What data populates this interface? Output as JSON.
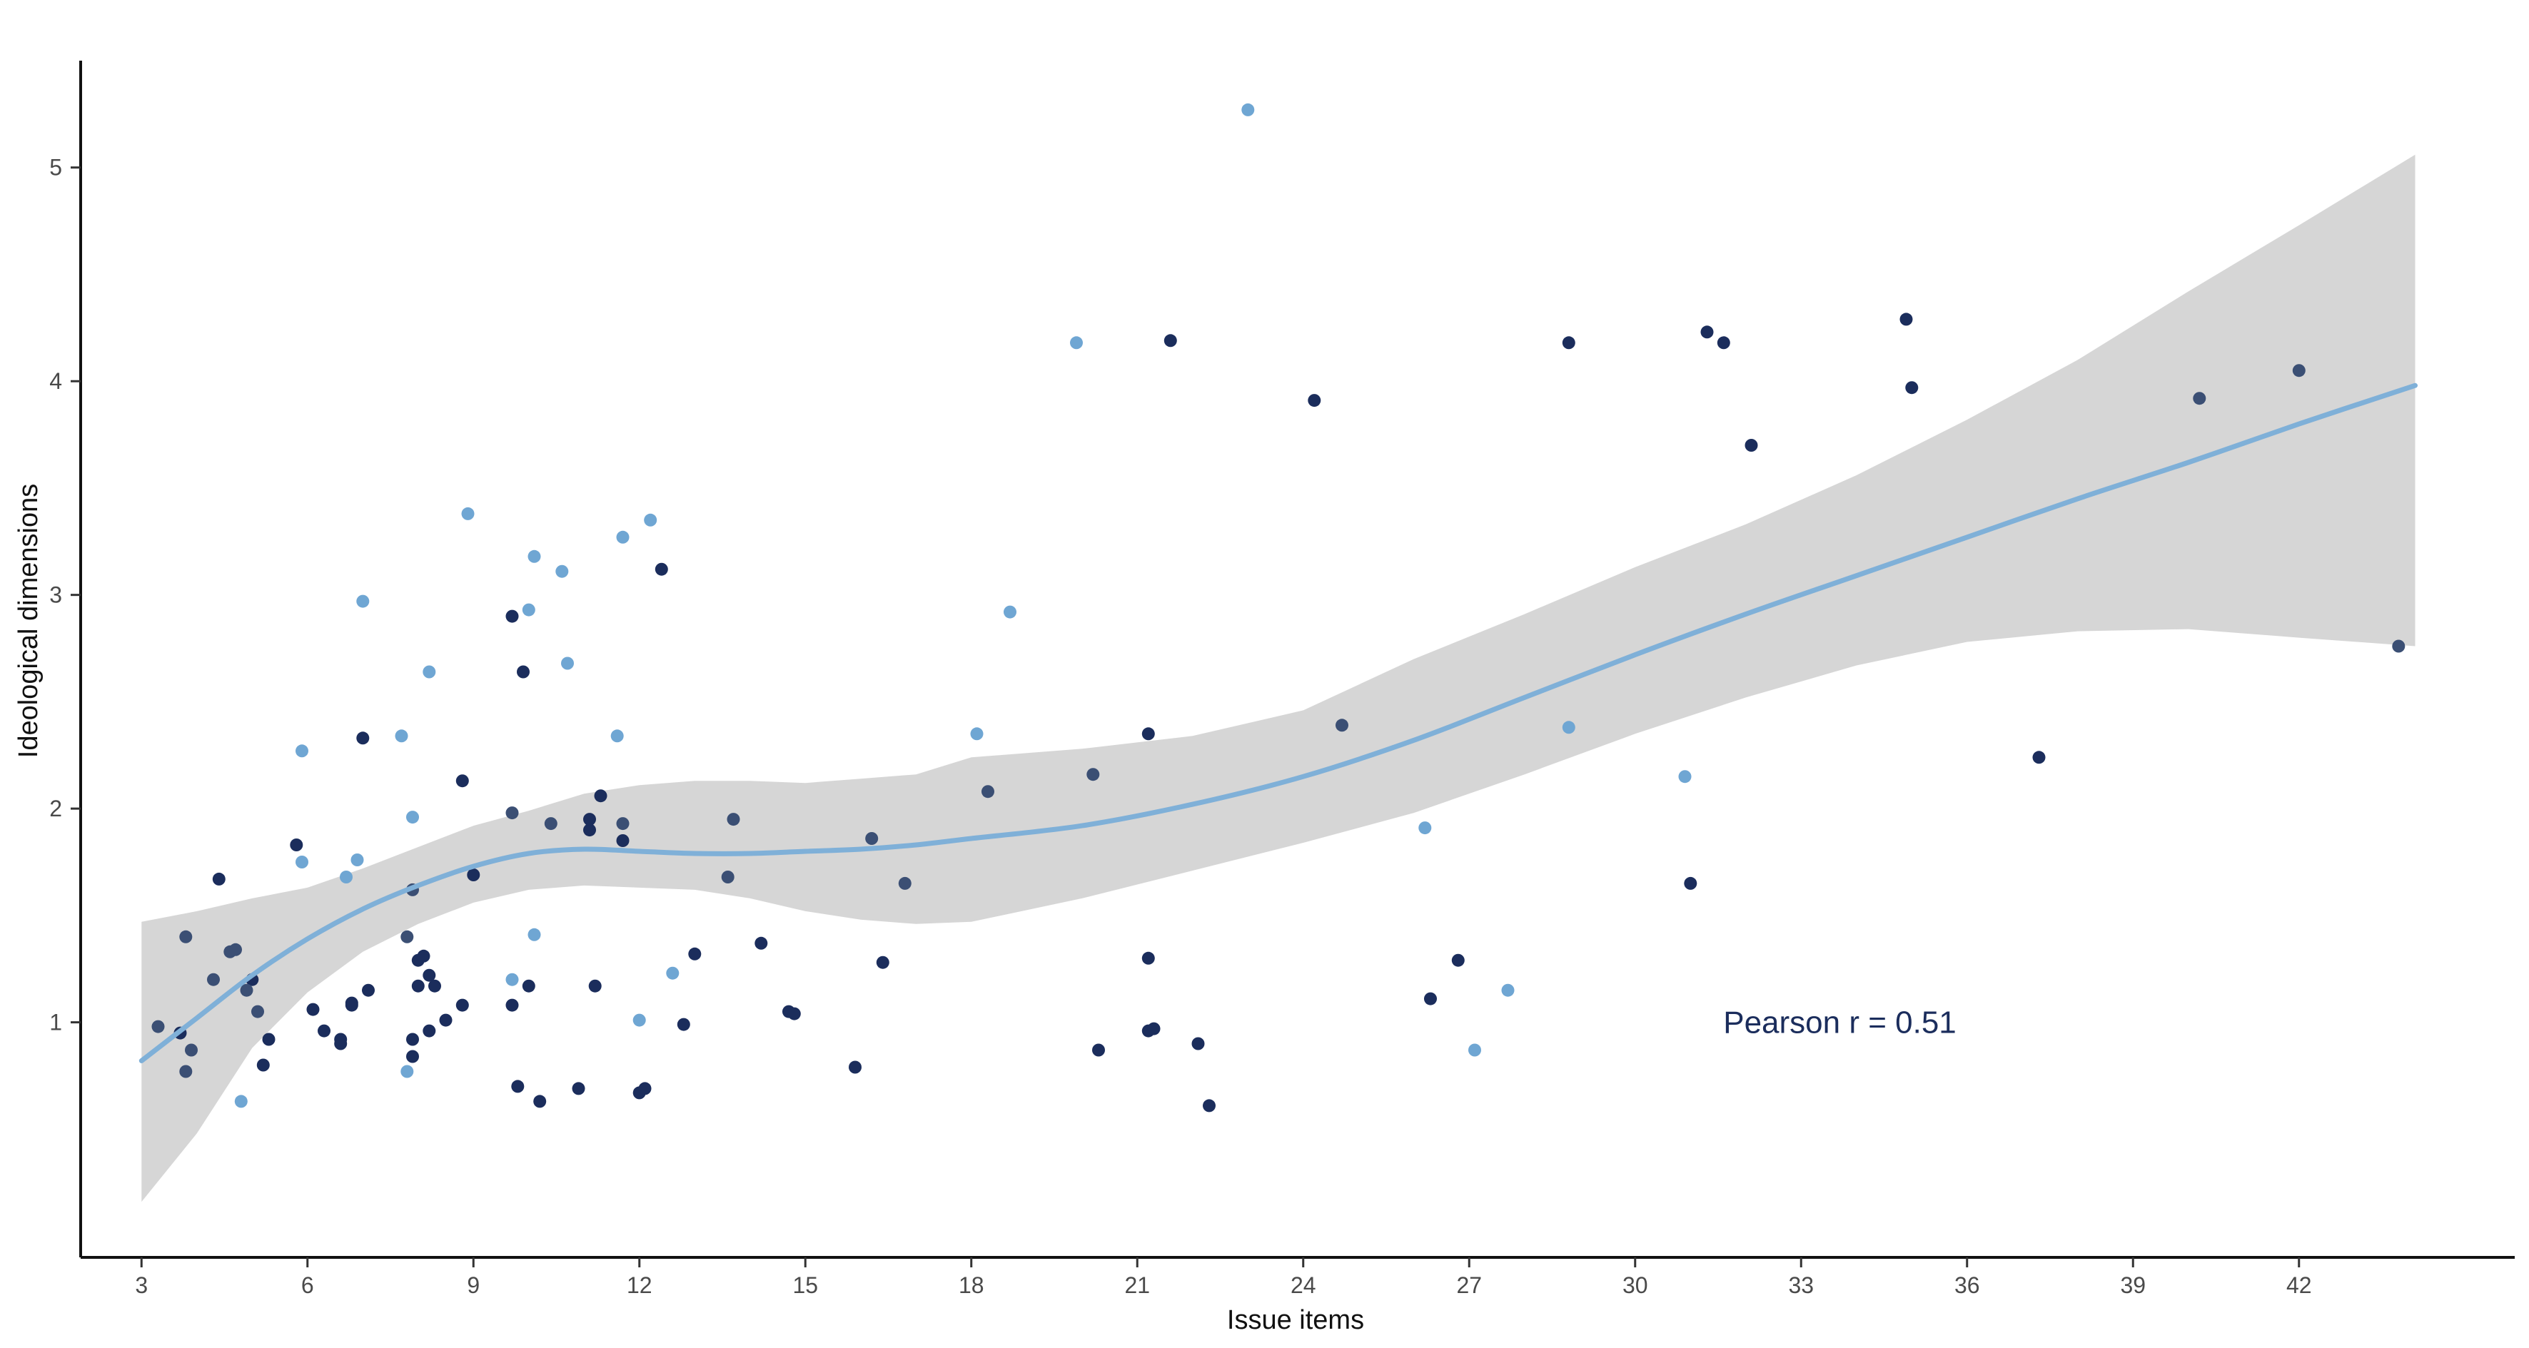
{
  "colors": {
    "background": "#ffffff",
    "axis": "#111111",
    "ribbon": "#d6d6d6",
    "smooth_line": "#7fb0d8",
    "point_dark": "#1b2d5c",
    "point_mid": "#3b4f74",
    "point_light": "#6fa6d3",
    "annotation": "#1b2d5c"
  },
  "chart_data": {
    "type": "scatter",
    "title": "",
    "xlabel": "Issue items",
    "ylabel": "Ideological dimensions",
    "xlim": [
      1.9,
      45.9
    ],
    "ylim": [
      -0.1,
      5.5
    ],
    "x_ticks": [
      3,
      6,
      9,
      12,
      15,
      18,
      21,
      24,
      27,
      30,
      33,
      36,
      39,
      42
    ],
    "y_ticks": [
      1,
      2,
      3,
      4,
      5
    ],
    "grid": false,
    "annotation": {
      "text": "Pearson r = 0.51",
      "x": 33.7,
      "y": 1.0
    },
    "smooth": {
      "method": "loess",
      "x": [
        3,
        4,
        5,
        6,
        7,
        8,
        9,
        10,
        11,
        12,
        13,
        14,
        15,
        16,
        17,
        18,
        20,
        22,
        24,
        26,
        28,
        30,
        32,
        34,
        36,
        38,
        40,
        42,
        44.1
      ],
      "y": [
        0.82,
        1.02,
        1.22,
        1.39,
        1.53,
        1.64,
        1.73,
        1.79,
        1.81,
        1.8,
        1.79,
        1.79,
        1.8,
        1.81,
        1.83,
        1.86,
        1.92,
        2.02,
        2.15,
        2.32,
        2.52,
        2.72,
        2.91,
        3.09,
        3.27,
        3.45,
        3.62,
        3.8,
        3.98
      ],
      "lower": [
        0.16,
        0.48,
        0.88,
        1.14,
        1.33,
        1.46,
        1.56,
        1.62,
        1.64,
        1.63,
        1.62,
        1.58,
        1.52,
        1.48,
        1.46,
        1.47,
        1.58,
        1.71,
        1.84,
        1.98,
        2.16,
        2.35,
        2.52,
        2.67,
        2.78,
        2.83,
        2.84,
        2.8,
        2.76
      ],
      "upper": [
        1.47,
        1.52,
        1.58,
        1.63,
        1.72,
        1.82,
        1.92,
        1.99,
        2.07,
        2.11,
        2.13,
        2.13,
        2.12,
        2.14,
        2.16,
        2.24,
        2.28,
        2.34,
        2.46,
        2.7,
        2.91,
        3.13,
        3.33,
        3.56,
        3.82,
        4.1,
        4.42,
        4.73,
        5.06
      ]
    },
    "series": [
      {
        "name": "dark",
        "color": "#1b2d5c",
        "points": [
          [
            3.7,
            0.95
          ],
          [
            4.4,
            1.67
          ],
          [
            5.0,
            1.2
          ],
          [
            5.2,
            0.8
          ],
          [
            5.3,
            0.92
          ],
          [
            5.8,
            1.83
          ],
          [
            6.1,
            1.06
          ],
          [
            6.3,
            0.96
          ],
          [
            6.6,
            0.9
          ],
          [
            6.6,
            0.92
          ],
          [
            6.8,
            1.08
          ],
          [
            6.8,
            1.09
          ],
          [
            7.0,
            2.33
          ],
          [
            7.1,
            1.15
          ],
          [
            7.9,
            0.84
          ],
          [
            7.9,
            0.92
          ],
          [
            8.0,
            1.17
          ],
          [
            8.0,
            1.29
          ],
          [
            8.1,
            1.31
          ],
          [
            8.2,
            1.22
          ],
          [
            8.2,
            0.96
          ],
          [
            8.3,
            1.17
          ],
          [
            8.5,
            1.01
          ],
          [
            8.8,
            1.08
          ],
          [
            8.8,
            2.13
          ],
          [
            9.0,
            1.69
          ],
          [
            9.7,
            2.9
          ],
          [
            9.7,
            1.08
          ],
          [
            9.8,
            0.7
          ],
          [
            9.9,
            2.64
          ],
          [
            10.0,
            1.17
          ],
          [
            10.2,
            0.63
          ],
          [
            10.9,
            0.69
          ],
          [
            11.1,
            1.9
          ],
          [
            11.1,
            1.95
          ],
          [
            11.2,
            1.17
          ],
          [
            11.3,
            2.06
          ],
          [
            11.7,
            1.85
          ],
          [
            12.0,
            0.67
          ],
          [
            12.1,
            0.69
          ],
          [
            12.4,
            3.12
          ],
          [
            12.8,
            0.99
          ],
          [
            13.0,
            1.32
          ],
          [
            14.2,
            1.37
          ],
          [
            14.7,
            1.05
          ],
          [
            14.8,
            1.04
          ],
          [
            15.9,
            0.79
          ],
          [
            16.4,
            1.28
          ],
          [
            20.3,
            0.87
          ],
          [
            21.2,
            2.35
          ],
          [
            21.2,
            1.3
          ],
          [
            21.2,
            0.96
          ],
          [
            21.3,
            0.97
          ],
          [
            21.6,
            4.19
          ],
          [
            22.1,
            0.9
          ],
          [
            22.3,
            0.61
          ],
          [
            24.2,
            3.91
          ],
          [
            26.3,
            1.11
          ],
          [
            26.8,
            1.29
          ],
          [
            28.8,
            4.18
          ],
          [
            31.0,
            1.65
          ],
          [
            31.3,
            4.23
          ],
          [
            31.6,
            4.18
          ],
          [
            32.1,
            3.7
          ],
          [
            34.9,
            4.29
          ],
          [
            35.0,
            3.97
          ],
          [
            37.3,
            2.24
          ]
        ]
      },
      {
        "name": "mid",
        "color": "#3b4f74",
        "points": [
          [
            3.3,
            0.98
          ],
          [
            3.8,
            1.4
          ],
          [
            3.8,
            0.77
          ],
          [
            3.9,
            0.87
          ],
          [
            4.3,
            1.2
          ],
          [
            4.6,
            1.33
          ],
          [
            4.7,
            1.34
          ],
          [
            4.9,
            1.15
          ],
          [
            5.1,
            1.05
          ],
          [
            7.8,
            1.4
          ],
          [
            7.9,
            1.62
          ],
          [
            9.7,
            1.98
          ],
          [
            10.4,
            1.93
          ],
          [
            11.7,
            1.93
          ],
          [
            13.6,
            1.68
          ],
          [
            13.7,
            1.95
          ],
          [
            16.2,
            1.86
          ],
          [
            16.8,
            1.65
          ],
          [
            18.3,
            2.08
          ],
          [
            20.2,
            2.16
          ],
          [
            24.7,
            2.39
          ],
          [
            40.2,
            3.92
          ],
          [
            42.0,
            4.05
          ],
          [
            43.8,
            2.76
          ]
        ]
      },
      {
        "name": "light",
        "color": "#6fa6d3",
        "points": [
          [
            4.8,
            0.63
          ],
          [
            5.9,
            1.75
          ],
          [
            5.9,
            2.27
          ],
          [
            6.7,
            1.68
          ],
          [
            6.9,
            1.76
          ],
          [
            7.0,
            2.97
          ],
          [
            7.7,
            2.34
          ],
          [
            7.8,
            0.77
          ],
          [
            7.9,
            1.96
          ],
          [
            8.2,
            2.64
          ],
          [
            8.9,
            3.38
          ],
          [
            9.7,
            1.2
          ],
          [
            10.0,
            2.93
          ],
          [
            10.1,
            1.41
          ],
          [
            10.1,
            3.18
          ],
          [
            10.6,
            3.11
          ],
          [
            10.7,
            2.68
          ],
          [
            11.6,
            2.34
          ],
          [
            11.7,
            3.27
          ],
          [
            12.0,
            1.01
          ],
          [
            12.2,
            3.35
          ],
          [
            12.6,
            1.23
          ],
          [
            18.1,
            2.35
          ],
          [
            18.7,
            2.92
          ],
          [
            19.9,
            4.18
          ],
          [
            23.0,
            5.27
          ],
          [
            26.2,
            1.91
          ],
          [
            27.1,
            0.87
          ],
          [
            27.7,
            1.15
          ],
          [
            28.8,
            2.38
          ],
          [
            30.9,
            2.15
          ]
        ]
      }
    ]
  }
}
